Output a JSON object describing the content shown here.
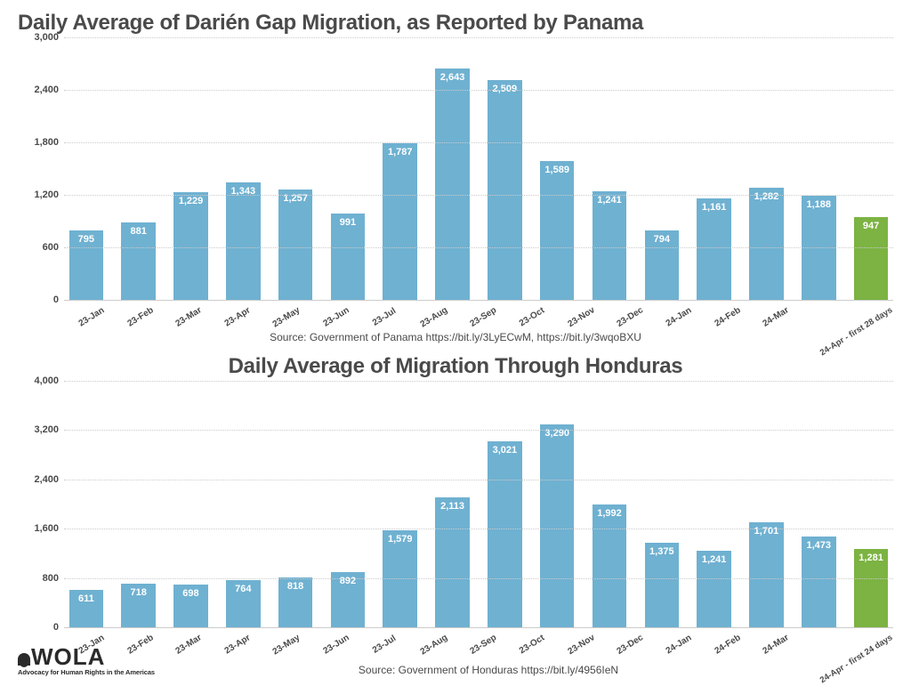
{
  "chart1": {
    "type": "bar",
    "title": "Daily Average of Darién Gap Migration, as Reported by Panama",
    "title_fontsize": 24,
    "title_color": "#4a4a4a",
    "source": "Source: Government of Panama https://bit.ly/3LyECwM, https://bit.ly/3wqoBXU",
    "background_color": "#ffffff",
    "grid_color": "#cccccc",
    "ylim": [
      0,
      3000
    ],
    "ytick_step": 600,
    "yticks": [
      "0",
      "600",
      "1,200",
      "1,800",
      "2,400",
      "3,000"
    ],
    "label_fontsize": 11,
    "label_color": "#4a4a4a",
    "bar_label_color": "#ffffff",
    "categories": [
      "23-Jan",
      "23-Feb",
      "23-Mar",
      "23-Apr",
      "23-May",
      "23-Jun",
      "23-Jul",
      "23-Aug",
      "23-Sep",
      "23-Oct",
      "23-Nov",
      "23-Dec",
      "24-Jan",
      "24-Feb",
      "24-Mar",
      "24-Apr - first 28 days"
    ],
    "values": [
      795,
      881,
      1229,
      1343,
      1257,
      991,
      1787,
      2643,
      2509,
      1589,
      1241,
      794,
      1161,
      1282,
      1188,
      947
    ],
    "value_labels": [
      "795",
      "881",
      "1,229",
      "1,343",
      "1,257",
      "991",
      "1,787",
      "2,643",
      "2,509",
      "1,589",
      "1,241",
      "794",
      "1,161",
      "1,282",
      "1,188",
      "947"
    ],
    "bar_colors": [
      "#6fb1d1",
      "#6fb1d1",
      "#6fb1d1",
      "#6fb1d1",
      "#6fb1d1",
      "#6fb1d1",
      "#6fb1d1",
      "#6fb1d1",
      "#6fb1d1",
      "#6fb1d1",
      "#6fb1d1",
      "#6fb1d1",
      "#6fb1d1",
      "#6fb1d1",
      "#6fb1d1",
      "#7cb342"
    ],
    "bar_width": 0.88
  },
  "chart2": {
    "type": "bar",
    "title": "Daily Average of Migration Through Honduras",
    "title_fontsize": 24,
    "title_color": "#4a4a4a",
    "source": "Source: Government of Honduras https://bit.ly/4956IeN",
    "background_color": "#ffffff",
    "grid_color": "#cccccc",
    "ylim": [
      0,
      4000
    ],
    "ytick_step": 800,
    "yticks": [
      "0",
      "800",
      "1,600",
      "2,400",
      "3,200",
      "4,000"
    ],
    "label_fontsize": 11,
    "label_color": "#4a4a4a",
    "bar_label_color": "#ffffff",
    "categories": [
      "23-Jan",
      "23-Feb",
      "23-Mar",
      "23-Apr",
      "23-May",
      "23-Jun",
      "23-Jul",
      "23-Aug",
      "23-Sep",
      "23-Oct",
      "23-Nov",
      "23-Dec",
      "24-Jan",
      "24-Feb",
      "24-Mar",
      "24-Apr - first 24 days"
    ],
    "values": [
      611,
      718,
      698,
      764,
      818,
      892,
      1579,
      2113,
      3021,
      3290,
      1992,
      1375,
      1241,
      1701,
      1473,
      1281
    ],
    "value_labels": [
      "611",
      "718",
      "698",
      "764",
      "818",
      "892",
      "1,579",
      "2,113",
      "3,021",
      "3,290",
      "1,992",
      "1,375",
      "1,241",
      "1,701",
      "1,473",
      "1,281"
    ],
    "bar_colors": [
      "#6fb1d1",
      "#6fb1d1",
      "#6fb1d1",
      "#6fb1d1",
      "#6fb1d1",
      "#6fb1d1",
      "#6fb1d1",
      "#6fb1d1",
      "#6fb1d1",
      "#6fb1d1",
      "#6fb1d1",
      "#6fb1d1",
      "#6fb1d1",
      "#6fb1d1",
      "#6fb1d1",
      "#7cb342"
    ],
    "bar_width": 0.88
  },
  "logo": {
    "text": "WOLA",
    "tagline": "Advocacy for Human Rights in the Americas"
  }
}
